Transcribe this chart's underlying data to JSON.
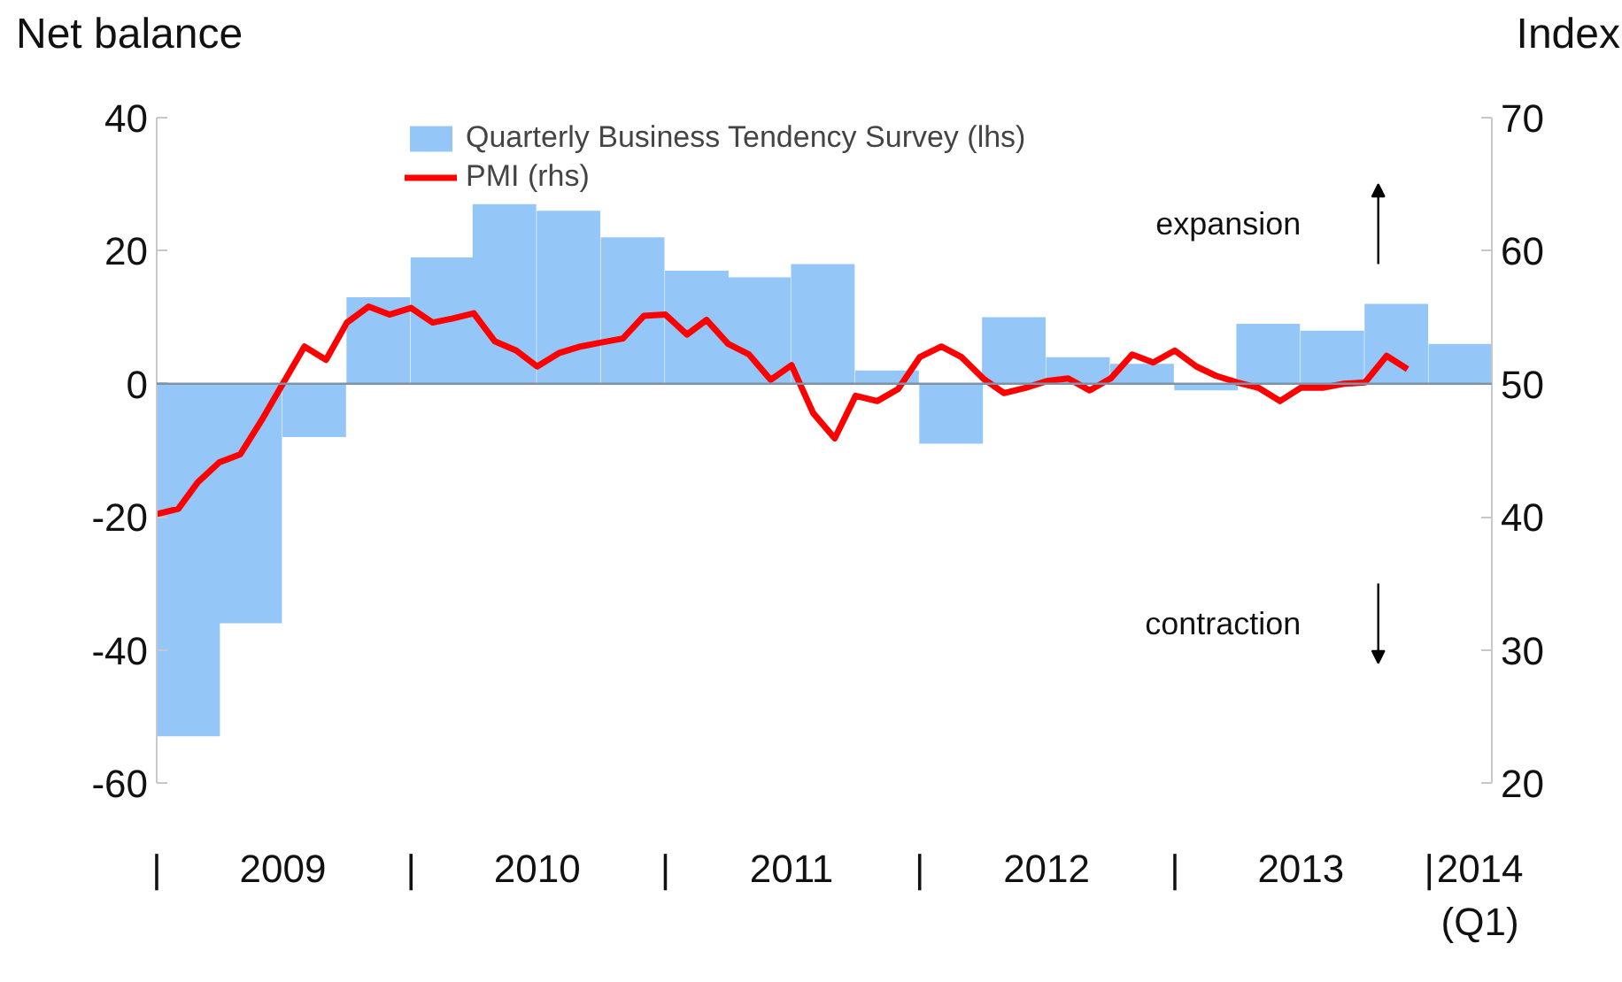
{
  "chart_data": {
    "type": "bar",
    "ylabel": "Net balance",
    "y2label": "Index",
    "x": [
      "2009-02-15",
      "2009-05-15",
      "2009-08-15",
      "2009-11-15",
      "2010-02-15",
      "2010-05-15",
      "2010-08-15",
      "2010-11-15",
      "2011-02-15",
      "2011-05-15",
      "2011-08-15",
      "2011-11-15",
      "2012-02-15",
      "2012-05-15",
      "2012-08-15",
      "2012-11-15",
      "2013-02-15",
      "2013-05-15",
      "2013-08-15",
      "2013-11-15",
      "2014-02-15"
    ],
    "series": [
      {
        "name": "Quarterly Business Tendency Survey (lhs)",
        "color": "#94c6f7",
        "values": [
          -53,
          -36,
          -8,
          13,
          19,
          27,
          26,
          22,
          17,
          16,
          18,
          2,
          -9,
          10,
          4,
          3,
          -1,
          9,
          8,
          12,
          6
        ]
      },
      {
        "name": "PMI (rhs)",
        "type": "line",
        "axis": "y2",
        "color": "#ff0000",
        "x": [
          "2009-01",
          "2009-02",
          "2009-03",
          "2009-04",
          "2009-05",
          "2009-06",
          "2009-07",
          "2009-08",
          "2009-09",
          "2009-10",
          "2009-11",
          "2009-12",
          "2010-01",
          "2010-02",
          "2010-03",
          "2010-04",
          "2010-05",
          "2010-06",
          "2010-07",
          "2010-08",
          "2010-09",
          "2010-10",
          "2010-11",
          "2010-12",
          "2011-01",
          "2011-02",
          "2011-03",
          "2011-04",
          "2011-05",
          "2011-06",
          "2011-07",
          "2011-08",
          "2011-09",
          "2011-10",
          "2011-11",
          "2011-12",
          "2012-01",
          "2012-02",
          "2012-03",
          "2012-04",
          "2012-05",
          "2012-06",
          "2012-07",
          "2012-08",
          "2012-09",
          "2012-10",
          "2012-11",
          "2012-12",
          "2013-01",
          "2013-02",
          "2013-03",
          "2013-04",
          "2013-05",
          "2013-06",
          "2013-07",
          "2013-08",
          "2013-09",
          "2013-10",
          "2013-11",
          "2013-12"
        ],
        "values": [
          40.2,
          40.6,
          42.6,
          44.1,
          44.7,
          47.3,
          50.0,
          52.8,
          51.8,
          54.6,
          55.8,
          55.2,
          55.7,
          54.6,
          54.9,
          55.3,
          53.2,
          52.5,
          51.3,
          52.3,
          52.8,
          53.1,
          53.4,
          55.1,
          55.2,
          53.7,
          54.8,
          53.0,
          52.2,
          50.3,
          51.4,
          47.8,
          45.9,
          49.1,
          48.7,
          49.6,
          52.0,
          52.8,
          52.0,
          50.4,
          49.3,
          49.7,
          50.2,
          50.4,
          49.5,
          50.4,
          52.2,
          51.6,
          52.5,
          51.3,
          50.6,
          50.1,
          49.7,
          48.7,
          49.7,
          49.7,
          50.0,
          50.1,
          52.1,
          51.1
        ]
      }
    ],
    "xlim": [
      "2009-01",
      "2014-04"
    ],
    "xticks": [
      {
        "value": "2009-01",
        "label": "|"
      },
      {
        "value": "2009-07",
        "label": "2009"
      },
      {
        "value": "2010-01",
        "label": "|"
      },
      {
        "value": "2010-07",
        "label": "2010"
      },
      {
        "value": "2011-01",
        "label": "|"
      },
      {
        "value": "2011-07",
        "label": "2011"
      },
      {
        "value": "2012-01",
        "label": "|"
      },
      {
        "value": "2012-07",
        "label": "2012"
      },
      {
        "value": "2013-01",
        "label": "|"
      },
      {
        "value": "2013-07",
        "label": "2013"
      },
      {
        "value": "2014-01",
        "label": "|"
      },
      {
        "value": "2014-03-15",
        "label": "2014\n(Q1)"
      }
    ],
    "ylim": [
      -60,
      40
    ],
    "yticks": [
      -60,
      -40,
      -20,
      0,
      20,
      40
    ],
    "y2lim": [
      20,
      70
    ],
    "y2ticks": [
      20,
      30,
      40,
      50,
      60,
      70
    ],
    "ref_lines": [
      {
        "axis": "y",
        "value": 0,
        "color": "#7f93a8"
      }
    ],
    "annotations": [
      "expansion",
      "contraction"
    ],
    "legend": "top",
    "grid": false
  }
}
